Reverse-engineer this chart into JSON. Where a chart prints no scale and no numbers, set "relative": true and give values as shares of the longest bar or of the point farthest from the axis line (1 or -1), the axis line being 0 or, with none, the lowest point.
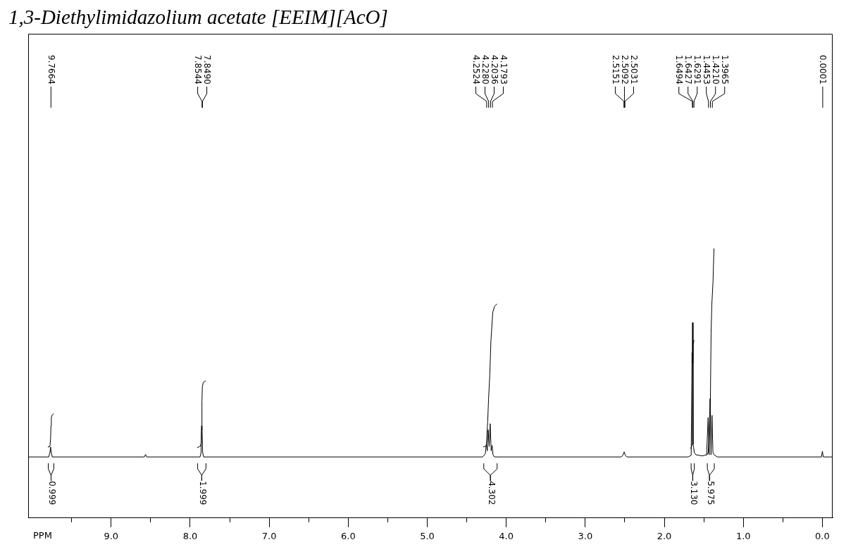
{
  "chart_data": {
    "type": "line",
    "title": "1,3-Diethylimidazolium acetate [EEIM][AcO]",
    "xlabel": "PPM",
    "relative": true,
    "xlim": [
      10.05,
      -0.13
    ],
    "xticks": [
      {
        "value": 9.5,
        "label": null
      },
      {
        "value": 9,
        "label": "9.0"
      },
      {
        "value": 8.5,
        "label": null
      },
      {
        "value": 8,
        "label": "8.0"
      },
      {
        "value": 7.5,
        "label": null
      },
      {
        "value": 7,
        "label": "7.0"
      },
      {
        "value": 6.5,
        "label": null
      },
      {
        "value": 6,
        "label": "6.0"
      },
      {
        "value": 5.5,
        "label": null
      },
      {
        "value": 5,
        "label": "5.0"
      },
      {
        "value": 4.5,
        "label": null
      },
      {
        "value": 4,
        "label": "4.0"
      },
      {
        "value": 3.5,
        "label": null
      },
      {
        "value": 3,
        "label": "3.0"
      },
      {
        "value": 2.5,
        "label": null
      },
      {
        "value": 2,
        "label": "2.0"
      },
      {
        "value": 1.5,
        "label": null
      },
      {
        "value": 1,
        "label": "1.0"
      },
      {
        "value": 0.5,
        "label": null
      },
      {
        "value": 0,
        "label": "0.0"
      }
    ],
    "series": [
      {
        "color": "#000000",
        "x": [
          10.05,
          9.79,
          9.775,
          9.7664,
          9.758,
          9.745,
          8.58,
          8.565,
          8.55,
          7.875,
          7.862,
          7.8544,
          7.8517,
          7.849,
          7.842,
          7.83,
          4.3,
          4.265,
          4.2524,
          4.24,
          4.228,
          4.216,
          4.2036,
          4.191,
          4.1793,
          4.168,
          4.15,
          2.545,
          2.525,
          2.5151,
          2.5092,
          2.5031,
          2.493,
          2.475,
          1.7,
          1.66,
          1.6494,
          1.646,
          1.6427,
          1.636,
          1.6291,
          1.62,
          1.6,
          1.52,
          1.465,
          1.4453,
          1.433,
          1.421,
          1.409,
          1.3965,
          1.385,
          1.37,
          1.33,
          0.012,
          0.0001,
          -0.012,
          -0.13
        ],
        "values": [
          0.225,
          0.225,
          0.241,
          0.262,
          0.241,
          0.225,
          0.225,
          0.234,
          0.225,
          0.225,
          0.241,
          0.341,
          0.326,
          0.334,
          0.241,
          0.225,
          0.225,
          0.237,
          0.272,
          0.248,
          0.326,
          0.264,
          0.349,
          0.248,
          0.268,
          0.233,
          0.225,
          0.225,
          0.231,
          0.239,
          0.244,
          0.239,
          0.231,
          0.225,
          0.225,
          0.231,
          0.613,
          0.574,
          0.725,
          0.272,
          0.26,
          0.241,
          0.233,
          0.229,
          0.233,
          0.372,
          0.233,
          0.442,
          0.233,
          0.38,
          0.241,
          0.233,
          0.225,
          0.225,
          0.246,
          0.225,
          0.225
        ]
      },
      {
        "color": "#000000",
        "x": [
          9.8,
          9.775,
          9.766,
          9.762,
          9.757,
          9.745,
          9.73,
          8.8,
          7.91,
          7.87,
          7.86,
          7.855,
          7.851,
          7.846,
          7.835,
          7.805,
          6.0,
          4.289,
          4.253,
          4.235,
          4.224,
          4.209,
          4.194,
          4.171,
          4.149,
          4.12,
          3.0,
          1.665,
          1.648,
          1.644,
          1.64,
          1.636,
          1.625,
          1.52,
          1.46,
          1.445,
          1.43,
          1.417,
          1.408,
          1.399,
          1.384,
          1.372
        ],
        "values": [
          0.262,
          0.264,
          0.295,
          0.341,
          0.372,
          0.382,
          0.385,
          null,
          0.26,
          0.265,
          0.279,
          0.341,
          0.434,
          0.485,
          0.502,
          0.508,
          null,
          0.262,
          0.266,
          0.357,
          0.441,
          0.527,
          0.658,
          0.763,
          0.785,
          0.794,
          null,
          0.256,
          0.272,
          0.419,
          0.574,
          0.644,
          0.659,
          null,
          0.233,
          0.241,
          0.318,
          0.44,
          0.686,
          0.791,
          0.876,
          1.0
        ]
      }
    ],
    "annotations": [
      {
        "text": "9.7664",
        "x": 9.7664
      },
      {
        "text": "7.8544",
        "x": 7.8544
      },
      {
        "text": "7.8490",
        "x": 7.849
      },
      {
        "text": "4.2524",
        "x": 4.2524
      },
      {
        "text": "4.2280",
        "x": 4.228
      },
      {
        "text": "4.2036",
        "x": 4.2036
      },
      {
        "text": "4.1793",
        "x": 4.1793
      },
      {
        "text": "2.5151",
        "x": 2.5151
      },
      {
        "text": "2.5092",
        "x": 2.5092
      },
      {
        "text": "2.5031",
        "x": 2.5031
      },
      {
        "text": "1.6494",
        "x": 1.6494
      },
      {
        "text": "1.6427",
        "x": 1.6427
      },
      {
        "text": "1.6291",
        "x": 1.6291
      },
      {
        "text": "1.4453",
        "x": 1.4453
      },
      {
        "text": "1.4210",
        "x": 1.421
      },
      {
        "text": "1.3965",
        "x": 1.3965
      },
      {
        "text": "0.0001",
        "x": 0.0001
      },
      {
        "text": "0.999",
        "x": 9.765,
        "y": 0.225
      },
      {
        "text": "1.999",
        "x": 7.858,
        "y": 0.225
      },
      {
        "text": "4.302",
        "x": 4.205,
        "y": 0.225
      },
      {
        "text": "3.130",
        "x": 1.645,
        "y": 0.225
      },
      {
        "text": "5.975",
        "x": 1.433,
        "y": 0.225
      }
    ]
  }
}
